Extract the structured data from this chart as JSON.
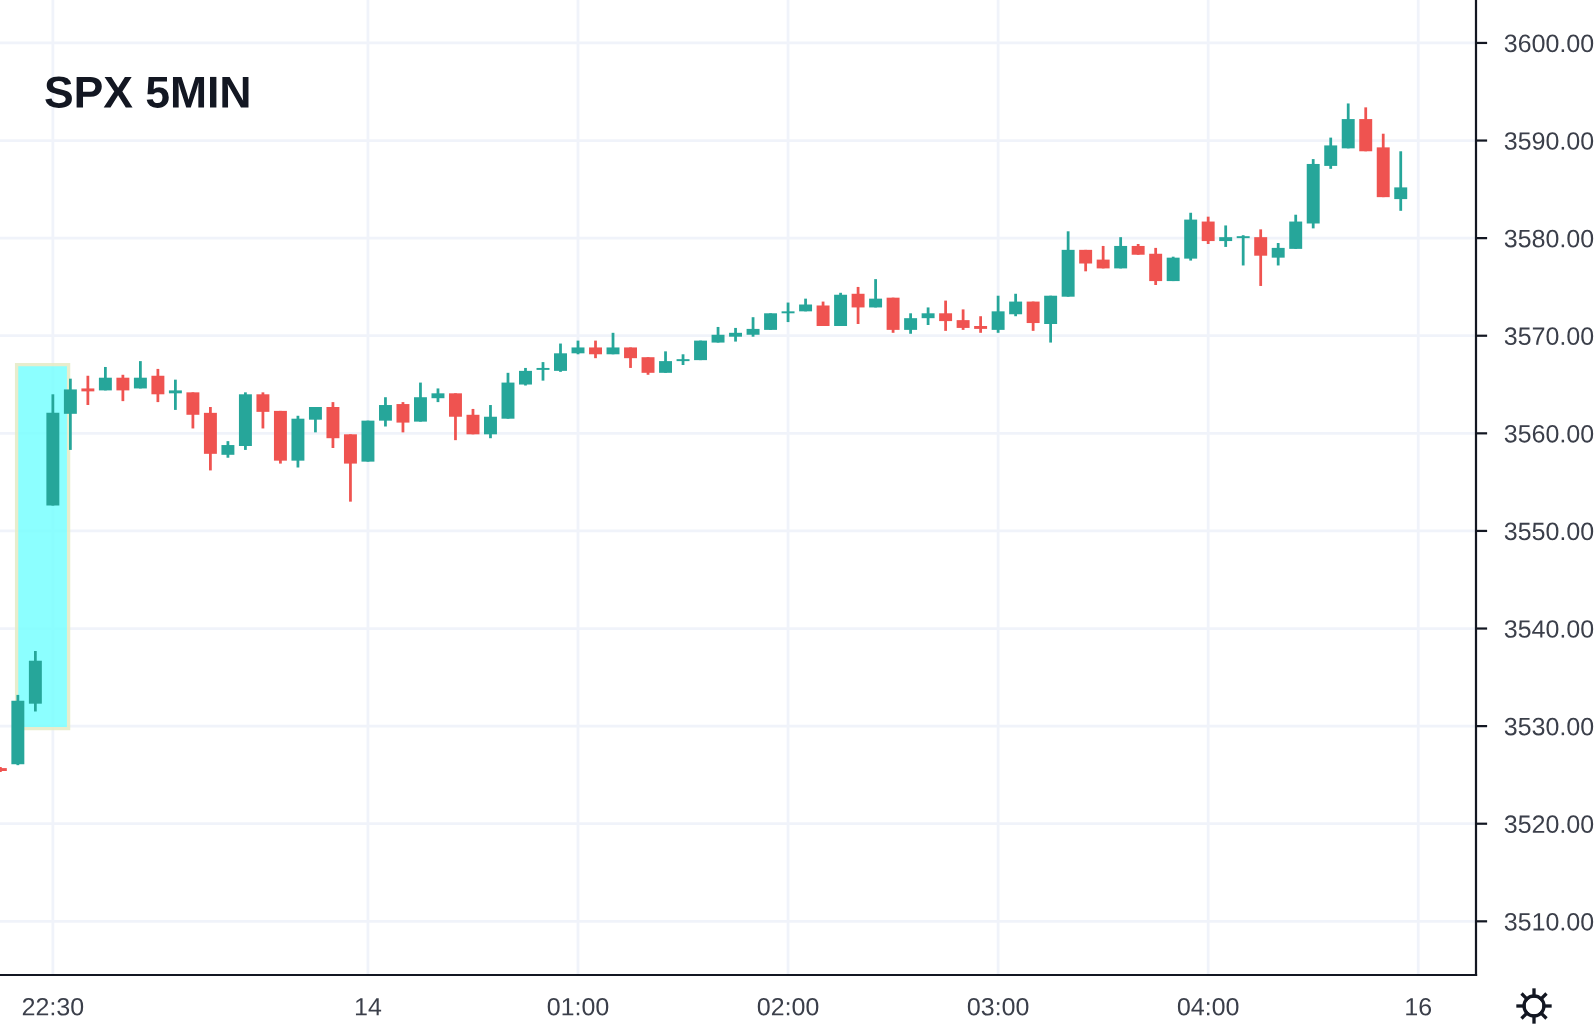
{
  "chart_data": {
    "type": "candlestick",
    "title": "SPX 5MIN",
    "categories": [
      null,
      null,
      null,
      "22:30",
      null,
      null,
      null,
      null,
      null,
      null,
      null,
      null,
      null,
      null,
      null,
      null,
      null,
      null,
      null,
      null,
      null,
      "14",
      null,
      null,
      null,
      null,
      null,
      null,
      null,
      null,
      null,
      null,
      null,
      "01:00",
      null,
      null,
      null,
      null,
      null,
      null,
      null,
      null,
      null,
      null,
      null,
      "02:00",
      null,
      null,
      null,
      null,
      null,
      null,
      null,
      null,
      null,
      null,
      null,
      "03:00",
      null,
      null,
      null,
      null,
      null,
      null,
      null,
      null,
      null,
      null,
      null,
      "04:00",
      null,
      null,
      null,
      null,
      null,
      null,
      null,
      null,
      null,
      null,
      null,
      "16"
    ],
    "ohlc": [
      [
        3525.7,
        3525.8,
        3525.3,
        3525.4
      ],
      [
        3526.1,
        3533.2,
        3526.0,
        3532.6
      ],
      [
        3532.3,
        3537.7,
        3531.5,
        3536.7
      ],
      [
        3552.6,
        3564.0,
        3552.6,
        3562.1
      ],
      [
        3562.0,
        3565.6,
        3558.3,
        3564.5
      ],
      [
        3564.6,
        3565.9,
        3562.9,
        3564.3
      ],
      [
        3564.4,
        3566.8,
        3564.4,
        3565.7
      ],
      [
        3565.7,
        3566.0,
        3563.3,
        3564.4
      ],
      [
        3564.6,
        3567.4,
        3564.6,
        3565.7
      ],
      [
        3565.9,
        3566.6,
        3563.2,
        3564.0
      ],
      [
        3564.1,
        3565.5,
        3562.4,
        3564.4
      ],
      [
        3564.2,
        3564.2,
        3560.5,
        3561.9
      ],
      [
        3562.1,
        3562.7,
        3556.2,
        3557.9
      ],
      [
        3557.8,
        3559.2,
        3557.5,
        3558.8
      ],
      [
        3558.7,
        3564.2,
        3558.3,
        3564.0
      ],
      [
        3564.0,
        3564.2,
        3560.5,
        3562.2
      ],
      [
        3562.3,
        3562.3,
        3556.9,
        3557.2
      ],
      [
        3557.2,
        3561.8,
        3556.5,
        3561.5
      ],
      [
        3561.4,
        3562.7,
        3560.1,
        3562.7
      ],
      [
        3562.7,
        3563.2,
        3558.5,
        3559.5
      ],
      [
        3559.9,
        3559.9,
        3553.0,
        3556.9
      ],
      [
        3557.1,
        3561.3,
        3557.1,
        3561.3
      ],
      [
        3561.3,
        3563.7,
        3560.7,
        3562.9
      ],
      [
        3563.0,
        3563.2,
        3560.1,
        3561.1
      ],
      [
        3561.2,
        3565.2,
        3561.2,
        3563.7
      ],
      [
        3563.6,
        3564.6,
        3563.2,
        3564.1
      ],
      [
        3564.1,
        3564.1,
        3559.3,
        3561.7
      ],
      [
        3561.9,
        3562.5,
        3559.9,
        3559.9
      ],
      [
        3559.9,
        3562.9,
        3559.5,
        3561.7
      ],
      [
        3561.5,
        3566.2,
        3561.5,
        3565.2
      ],
      [
        3565.0,
        3566.7,
        3564.9,
        3566.4
      ],
      [
        3566.5,
        3567.3,
        3565.4,
        3566.7
      ],
      [
        3566.4,
        3569.2,
        3566.3,
        3568.2
      ],
      [
        3568.2,
        3569.5,
        3568.1,
        3568.8
      ],
      [
        3568.8,
        3569.5,
        3567.7,
        3568.1
      ],
      [
        3568.1,
        3570.3,
        3568.1,
        3568.8
      ],
      [
        3568.8,
        3568.8,
        3566.7,
        3567.7
      ],
      [
        3567.8,
        3567.8,
        3566.0,
        3566.2
      ],
      [
        3566.2,
        3568.4,
        3566.2,
        3567.4
      ],
      [
        3567.4,
        3568.1,
        3567.0,
        3567.6
      ],
      [
        3567.5,
        3569.5,
        3567.5,
        3569.5
      ],
      [
        3569.3,
        3570.9,
        3569.3,
        3570.1
      ],
      [
        3569.9,
        3570.8,
        3569.4,
        3570.3
      ],
      [
        3570.1,
        3571.9,
        3569.9,
        3570.7
      ],
      [
        3570.6,
        3572.3,
        3570.6,
        3572.3
      ],
      [
        3572.3,
        3573.4,
        3571.4,
        3572.5
      ],
      [
        3572.5,
        3573.8,
        3572.5,
        3573.2
      ],
      [
        3573.1,
        3573.5,
        3571.0,
        3571.0
      ],
      [
        3571.0,
        3574.4,
        3571.0,
        3574.2
      ],
      [
        3574.3,
        3575.0,
        3571.2,
        3572.9
      ],
      [
        3572.9,
        3575.8,
        3572.9,
        3573.8
      ],
      [
        3573.9,
        3573.9,
        3570.3,
        3570.6
      ],
      [
        3570.6,
        3572.3,
        3570.2,
        3571.8
      ],
      [
        3571.8,
        3572.9,
        3571.1,
        3572.3
      ],
      [
        3572.3,
        3573.6,
        3570.5,
        3571.5
      ],
      [
        3571.6,
        3572.7,
        3570.6,
        3570.8
      ],
      [
        3571.0,
        3572.0,
        3570.3,
        3570.7
      ],
      [
        3570.6,
        3574.1,
        3570.3,
        3572.5
      ],
      [
        3572.2,
        3574.3,
        3572.0,
        3573.5
      ],
      [
        3573.5,
        3573.5,
        3570.5,
        3571.3
      ],
      [
        3571.2,
        3574.1,
        3569.3,
        3574.1
      ],
      [
        3574.0,
        3580.7,
        3574.0,
        3578.8
      ],
      [
        3578.8,
        3578.8,
        3576.6,
        3577.4
      ],
      [
        3577.8,
        3579.2,
        3576.9,
        3576.9
      ],
      [
        3576.9,
        3580.1,
        3576.9,
        3579.2
      ],
      [
        3579.2,
        3579.4,
        3578.3,
        3578.3
      ],
      [
        3578.4,
        3579.0,
        3575.2,
        3575.6
      ],
      [
        3575.6,
        3578.1,
        3575.6,
        3578.0
      ],
      [
        3577.9,
        3582.6,
        3577.7,
        3581.9
      ],
      [
        3581.7,
        3582.2,
        3579.4,
        3579.7
      ],
      [
        3579.7,
        3581.3,
        3579.1,
        3580.1
      ],
      [
        3580.0,
        3580.3,
        3577.2,
        3580.2
      ],
      [
        3580.1,
        3580.9,
        3575.1,
        3578.2
      ],
      [
        3578.0,
        3579.5,
        3577.2,
        3579.0
      ],
      [
        3578.9,
        3582.4,
        3578.9,
        3581.7
      ],
      [
        3581.5,
        3588.1,
        3581.0,
        3587.6
      ],
      [
        3587.4,
        3590.3,
        3587.1,
        3589.5
      ],
      [
        3589.2,
        3593.8,
        3589.2,
        3592.2
      ],
      [
        3592.2,
        3593.4,
        3588.9,
        3588.9
      ],
      [
        3589.3,
        3590.7,
        3584.2,
        3584.2
      ],
      [
        3584.0,
        3588.9,
        3582.8,
        3585.2
      ],
      null
    ],
    "ylim": [
      3504.5,
      3604.4
    ],
    "yticks": [
      {
        "value": 3510,
        "label": "3510.00"
      },
      {
        "value": 3520,
        "label": "3520.00"
      },
      {
        "value": 3530,
        "label": "3530.00"
      },
      {
        "value": 3540,
        "label": "3540.00"
      },
      {
        "value": 3550,
        "label": "3550.00"
      },
      {
        "value": 3560,
        "label": "3560.00"
      },
      {
        "value": 3570,
        "label": "3570.00"
      },
      {
        "value": 3580,
        "label": "3580.00"
      },
      {
        "value": 3590,
        "label": "3590.00"
      },
      {
        "value": 3600,
        "label": "3600.00"
      }
    ],
    "grid": true
  }
}
